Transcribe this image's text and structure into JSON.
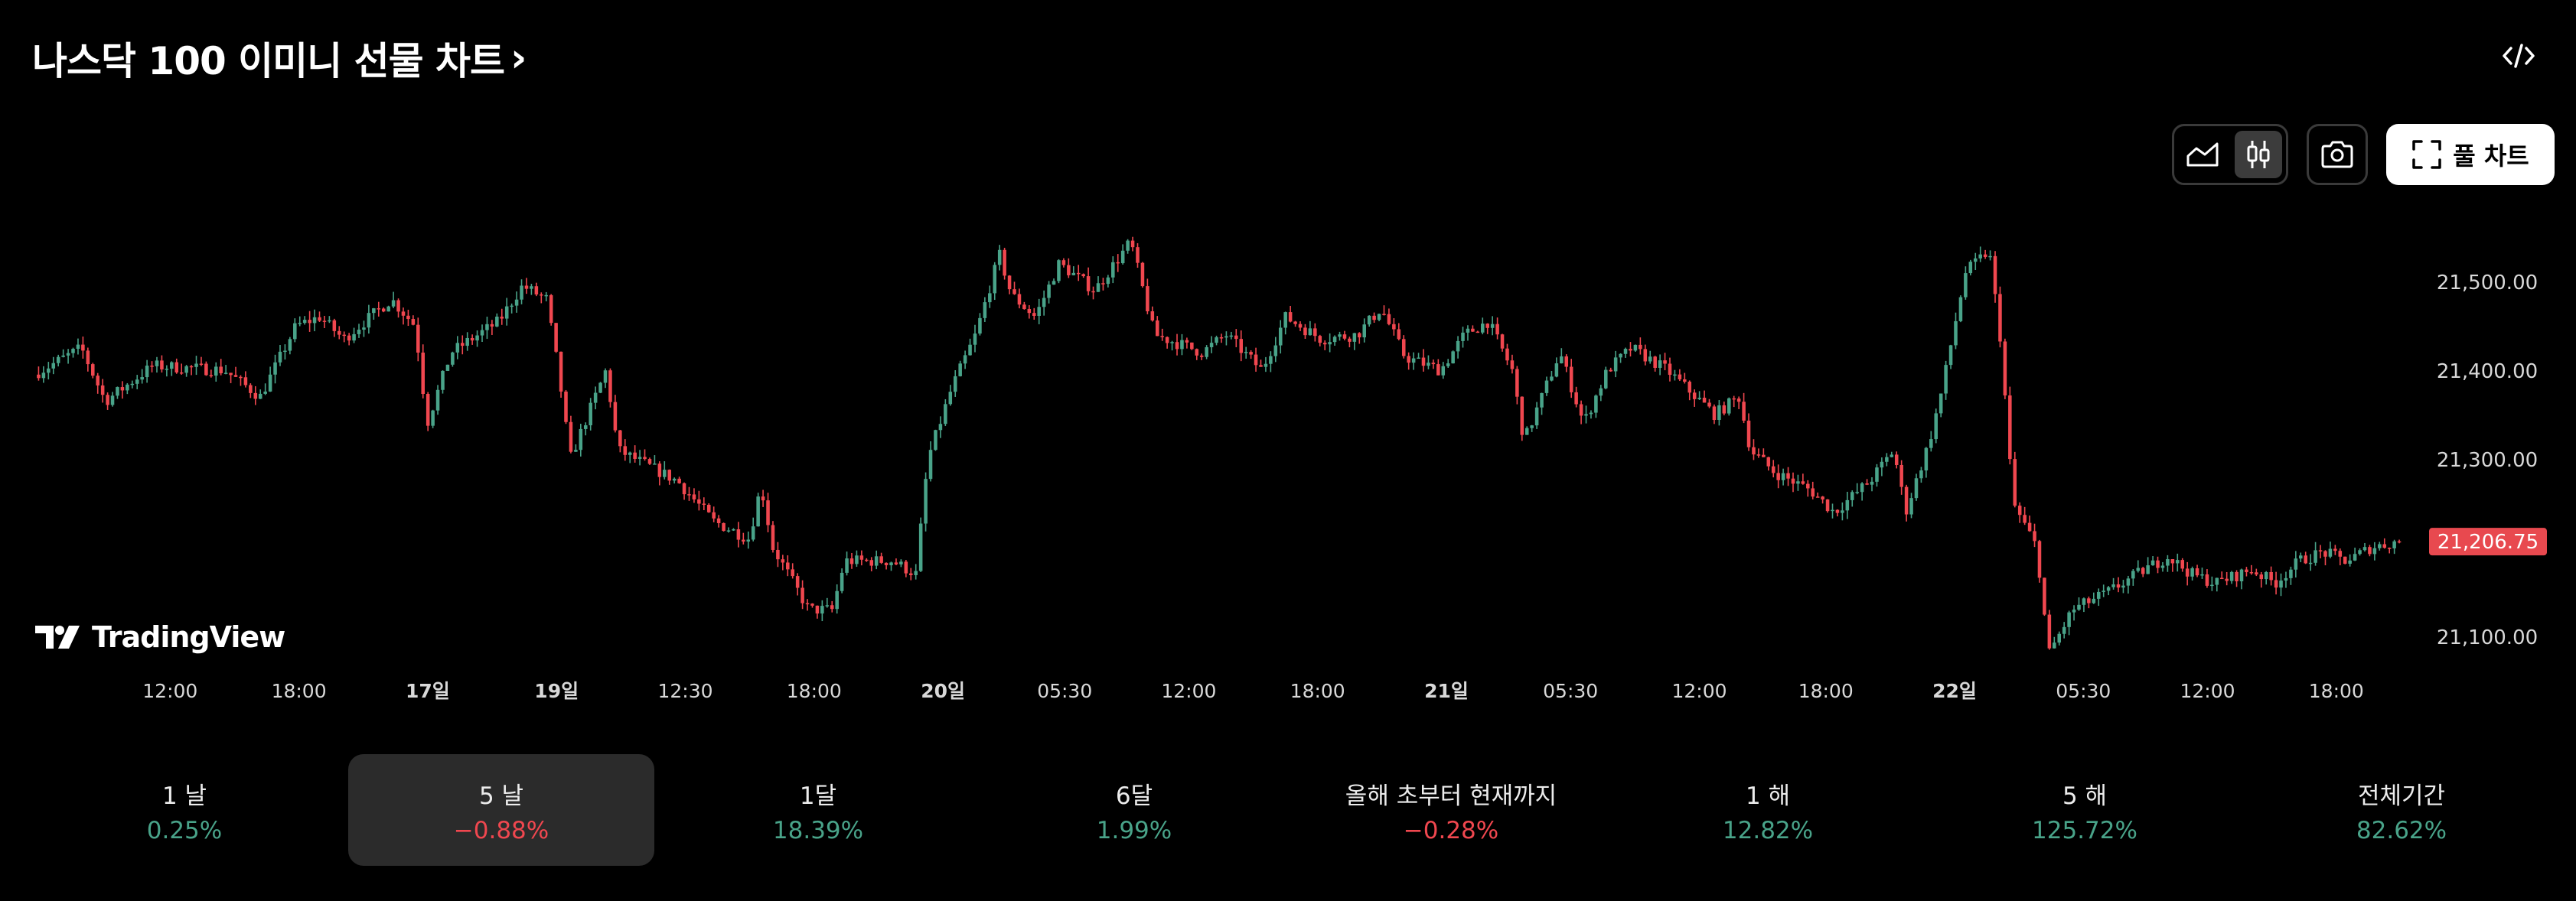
{
  "header": {
    "title": "나스닥 100 이미니 선물 차트",
    "chevron": "›",
    "embed_icon": "code-icon"
  },
  "toolbar": {
    "area_icon": "area-chart-icon",
    "candle_icon": "candlestick-icon",
    "active_mode": "candles",
    "camera_icon": "camera-icon",
    "full_chart_label": "풀 차트",
    "full_chart_icon": "fullscreen-icon"
  },
  "branding": {
    "logo_text": "TradingView"
  },
  "colors": {
    "up": "#49a389",
    "down": "#f0474f",
    "price_tag_bg": "#e8494f",
    "background": "#000000"
  },
  "chart_data": {
    "type": "candlestick",
    "title": "",
    "y_ticks": [
      21500,
      21400,
      21300,
      21200,
      21100
    ],
    "y_tick_labels": [
      "21,500.00",
      "21,400.00",
      "21,300.00",
      "21,100.00"
    ],
    "ylim": [
      21020,
      21600
    ],
    "last_price": 21206.75,
    "last_price_label": "21,206.75",
    "x_ticks": [
      {
        "label": "12:00",
        "i": 0.055,
        "bold": false
      },
      {
        "label": "18:00",
        "i": 0.11,
        "bold": false
      },
      {
        "label": "17일",
        "i": 0.165,
        "bold": true
      },
      {
        "label": "19일",
        "i": 0.22,
        "bold": true
      },
      {
        "label": "12:30",
        "i": 0.275,
        "bold": false
      },
      {
        "label": "18:00",
        "i": 0.33,
        "bold": false
      },
      {
        "label": "20일",
        "i": 0.385,
        "bold": true
      },
      {
        "label": "05:30",
        "i": 0.437,
        "bold": false
      },
      {
        "label": "12:00",
        "i": 0.49,
        "bold": false
      },
      {
        "label": "18:00",
        "i": 0.545,
        "bold": false
      },
      {
        "label": "21일",
        "i": 0.6,
        "bold": true
      },
      {
        "label": "05:30",
        "i": 0.653,
        "bold": false
      },
      {
        "label": "12:00",
        "i": 0.708,
        "bold": false
      },
      {
        "label": "18:00",
        "i": 0.762,
        "bold": false
      },
      {
        "label": "22일",
        "i": 0.817,
        "bold": true
      },
      {
        "label": "05:30",
        "i": 0.872,
        "bold": false
      },
      {
        "label": "12:00",
        "i": 0.925,
        "bold": false
      },
      {
        "label": "18:00",
        "i": 0.98,
        "bold": false
      }
    ],
    "anchors": [
      [
        0,
        21395
      ],
      [
        0.02,
        21425
      ],
      [
        0.03,
        21365
      ],
      [
        0.05,
        21405
      ],
      [
        0.08,
        21400
      ],
      [
        0.095,
        21370
      ],
      [
        0.11,
        21450
      ],
      [
        0.12,
        21460
      ],
      [
        0.13,
        21435
      ],
      [
        0.15,
        21480
      ],
      [
        0.16,
        21450
      ],
      [
        0.165,
        21340
      ],
      [
        0.175,
        21420
      ],
      [
        0.195,
        21455
      ],
      [
        0.205,
        21495
      ],
      [
        0.215,
        21480
      ],
      [
        0.22,
        21400
      ],
      [
        0.225,
        21300
      ],
      [
        0.24,
        21400
      ],
      [
        0.245,
        21310
      ],
      [
        0.27,
        21275
      ],
      [
        0.285,
        21230
      ],
      [
        0.3,
        21210
      ],
      [
        0.305,
        21270
      ],
      [
        0.31,
        21200
      ],
      [
        0.325,
        21130
      ],
      [
        0.335,
        21130
      ],
      [
        0.34,
        21185
      ],
      [
        0.36,
        21185
      ],
      [
        0.37,
        21170
      ],
      [
        0.375,
        21300
      ],
      [
        0.385,
        21380
      ],
      [
        0.395,
        21440
      ],
      [
        0.405,
        21530
      ],
      [
        0.41,
        21485
      ],
      [
        0.42,
        21460
      ],
      [
        0.43,
        21520
      ],
      [
        0.445,
        21490
      ],
      [
        0.46,
        21545
      ],
      [
        0.47,
        21440
      ],
      [
        0.49,
        21420
      ],
      [
        0.5,
        21440
      ],
      [
        0.515,
        21400
      ],
      [
        0.525,
        21460
      ],
      [
        0.54,
        21435
      ],
      [
        0.555,
        21440
      ],
      [
        0.565,
        21470
      ],
      [
        0.575,
        21415
      ],
      [
        0.59,
        21400
      ],
      [
        0.6,
        21440
      ],
      [
        0.61,
        21455
      ],
      [
        0.62,
        21400
      ],
      [
        0.625,
        21320
      ],
      [
        0.64,
        21420
      ],
      [
        0.65,
        21340
      ],
      [
        0.66,
        21400
      ],
      [
        0.67,
        21425
      ],
      [
        0.685,
        21400
      ],
      [
        0.695,
        21375
      ],
      [
        0.705,
        21350
      ],
      [
        0.715,
        21370
      ],
      [
        0.72,
        21310
      ],
      [
        0.73,
        21285
      ],
      [
        0.745,
        21265
      ],
      [
        0.755,
        21240
      ],
      [
        0.77,
        21275
      ],
      [
        0.78,
        21310
      ],
      [
        0.785,
        21240
      ],
      [
        0.795,
        21320
      ],
      [
        0.8,
        21375
      ],
      [
        0.81,
        21510
      ],
      [
        0.82,
        21535
      ],
      [
        0.825,
        21430
      ],
      [
        0.83,
        21250
      ],
      [
        0.84,
        21200
      ],
      [
        0.845,
        21080
      ],
      [
        0.855,
        21130
      ],
      [
        0.87,
        21150
      ],
      [
        0.885,
        21175
      ],
      [
        0.895,
        21190
      ],
      [
        0.905,
        21170
      ],
      [
        0.915,
        21160
      ],
      [
        0.93,
        21175
      ],
      [
        0.94,
        21160
      ],
      [
        0.95,
        21185
      ],
      [
        0.96,
        21195
      ],
      [
        0.97,
        21185
      ],
      [
        0.98,
        21200
      ],
      [
        0.992,
        21207
      ]
    ]
  },
  "periods": [
    {
      "label": "1 날",
      "change": "0.25%",
      "dir": "up",
      "selected": false
    },
    {
      "label": "5 날",
      "change": "−0.88%",
      "dir": "down",
      "selected": true
    },
    {
      "label": "1달",
      "change": "18.39%",
      "dir": "up",
      "selected": false
    },
    {
      "label": "6달",
      "change": "1.99%",
      "dir": "up",
      "selected": false
    },
    {
      "label": "올해 초부터 현재까지",
      "change": "−0.28%",
      "dir": "down",
      "selected": false
    },
    {
      "label": "1 해",
      "change": "12.82%",
      "dir": "up",
      "selected": false
    },
    {
      "label": "5 해",
      "change": "125.72%",
      "dir": "up",
      "selected": false
    },
    {
      "label": "전체기간",
      "change": "82.62%",
      "dir": "up",
      "selected": false
    }
  ]
}
